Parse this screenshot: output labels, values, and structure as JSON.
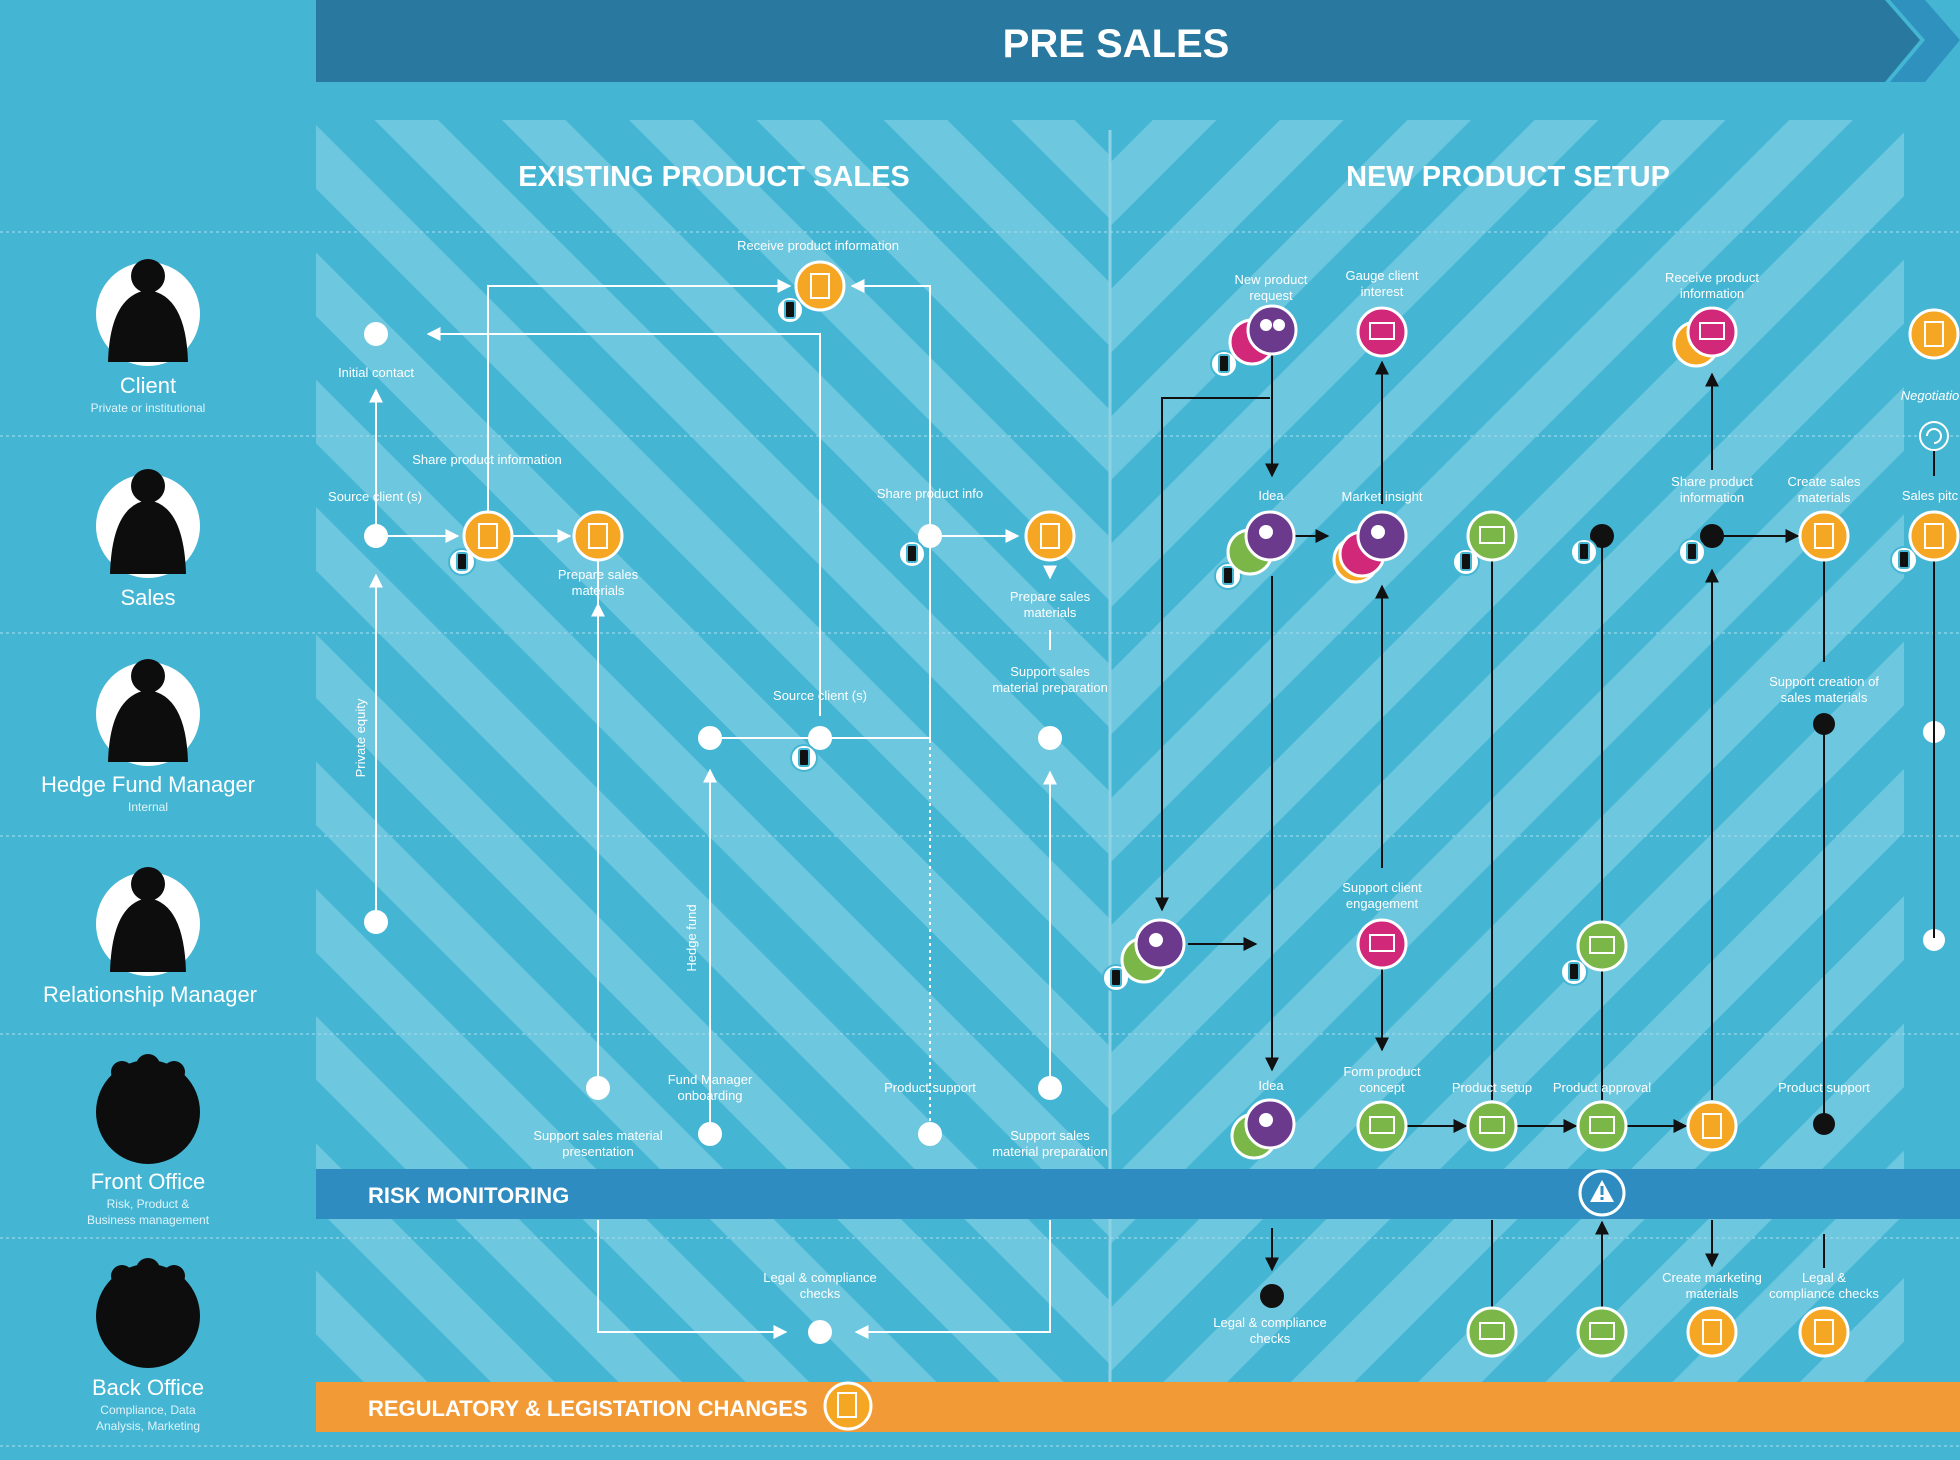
{
  "banner": {
    "title": "PRE SALES"
  },
  "sections": {
    "existing": "EXISTING PRODUCT SALES",
    "new": "NEW PRODUCT SETUP"
  },
  "roles": [
    {
      "name": "Client",
      "sub": "Private or institutional"
    },
    {
      "name": "Sales",
      "sub": ""
    },
    {
      "name": "Hedge Fund Manager",
      "sub": "Internal"
    },
    {
      "name": "Relationship Manager",
      "sub": ""
    },
    {
      "name": "Front Office",
      "sub": "Risk, Product &",
      "sub2": "Business management"
    },
    {
      "name": "Back Office",
      "sub": "Compliance, Data",
      "sub2": "Analysis, Marketing"
    }
  ],
  "bands": {
    "risk": "RISK MONITORING",
    "regulatory": "REGULATORY & LEGISTATION CHANGES"
  },
  "labels": {
    "receive_product_info": "Receive product information",
    "initial_contact": "Initial contact",
    "share_product_info": "Share product information",
    "source_client": "Source client (s)",
    "prepare_sales_1": "Prepare sales",
    "materials": "materials",
    "share_product_info_short": "Share product info",
    "support_sales_material_1": "Support sales",
    "material_preparation": "material preparation",
    "source_client_mid": "Source client (s)",
    "private_equity": "Private equity",
    "hedge_fund": "Hedge fund",
    "fund_manager_1": "Fund Manager",
    "fund_manager_2": "onboarding",
    "product_support": "Product support",
    "support_sales_material_pres_1": "Support sales material",
    "support_sales_material_pres_2": "presentation",
    "legal_compliance_1": "Legal & compliance",
    "legal_compliance_2": "checks",
    "new_product_request_1": "New product",
    "new_product_request_2": "request",
    "gauge_client_1": "Gauge client",
    "gauge_client_2": "interest",
    "receive_product_info_1": "Receive product",
    "receive_product_info_2": "information",
    "negotiation": "Negotiatio",
    "idea": "Idea",
    "market_insight": "Market insight",
    "share_product_1": "Share product",
    "share_product_2": "information",
    "create_sales_1": "Create sales",
    "create_sales_2": "materials",
    "sales_pitch": "Sales pitc",
    "support_creation_1": "Support creation of",
    "support_creation_2": "sales materials",
    "support_client_1": "Support client",
    "support_client_2": "engagement",
    "form_product_1": "Form product",
    "form_product_2": "concept",
    "product_setup": "Product setup",
    "product_approval": "Product approval",
    "create_marketing_1": "Create marketing",
    "create_marketing_2": "materials",
    "legal_compliance_b1": "Legal &",
    "legal_compliance_b2": "compliance checks"
  },
  "colors": {
    "background": "#44b6d4",
    "banner": "#2878a0",
    "stripe": "#8bd3e6",
    "risk_band": "#2e8cc0",
    "regulatory_band": "#f29a36",
    "orange_node": "#f5a623",
    "magenta_node": "#d1287a",
    "purple_node": "#6b3a8c",
    "green_node": "#7ab648"
  }
}
